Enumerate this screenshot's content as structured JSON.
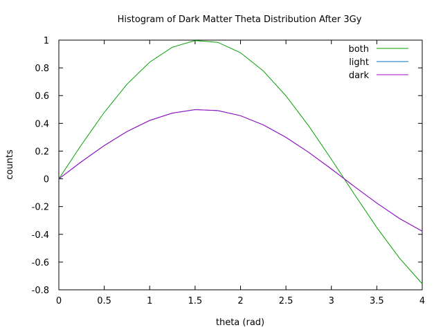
{
  "chart_data": {
    "type": "line",
    "title": "Histogram of Dark Matter Theta Distribution After 3Gy",
    "xlabel": "theta (rad)",
    "ylabel": "counts",
    "xlim": [
      0,
      4
    ],
    "ylim": [
      -0.8,
      1
    ],
    "xticks": [
      0,
      0.5,
      1,
      1.5,
      2,
      2.5,
      3,
      3.5,
      4
    ],
    "xtick_labels": [
      "0",
      "0.5",
      "1",
      "1.5",
      "2",
      "2.5",
      "3",
      "3.5",
      "4"
    ],
    "yticks": [
      -0.8,
      -0.6,
      -0.4,
      -0.2,
      0,
      0.2,
      0.4,
      0.6,
      0.8,
      1
    ],
    "ytick_labels": [
      "-0.8",
      "-0.6",
      "-0.4",
      "-0.2",
      "0",
      "0.2",
      "0.4",
      "0.6",
      "0.8",
      "1"
    ],
    "grid": false,
    "legend_position": "top-right",
    "x": [
      0,
      0.25,
      0.5,
      0.75,
      1,
      1.25,
      1.5,
      1.75,
      2,
      2.25,
      2.5,
      2.75,
      3,
      3.25,
      3.5,
      3.75,
      4
    ],
    "series": [
      {
        "name": "both",
        "color": "#00a000",
        "values": [
          0,
          0.247,
          0.479,
          0.682,
          0.841,
          0.949,
          0.997,
          0.984,
          0.909,
          0.778,
          0.598,
          0.382,
          0.141,
          -0.108,
          -0.351,
          -0.572,
          -0.757
        ]
      },
      {
        "name": "light",
        "color": "#0070c0",
        "values": [
          0,
          0.124,
          0.24,
          0.341,
          0.421,
          0.474,
          0.499,
          0.492,
          0.455,
          0.389,
          0.299,
          0.191,
          0.071,
          -0.054,
          -0.175,
          -0.286,
          -0.378
        ]
      },
      {
        "name": "dark",
        "color": "#a000c0",
        "values": [
          0,
          0.124,
          0.24,
          0.341,
          0.421,
          0.474,
          0.499,
          0.492,
          0.455,
          0.389,
          0.299,
          0.191,
          0.071,
          -0.054,
          -0.175,
          -0.286,
          -0.378
        ]
      }
    ]
  }
}
